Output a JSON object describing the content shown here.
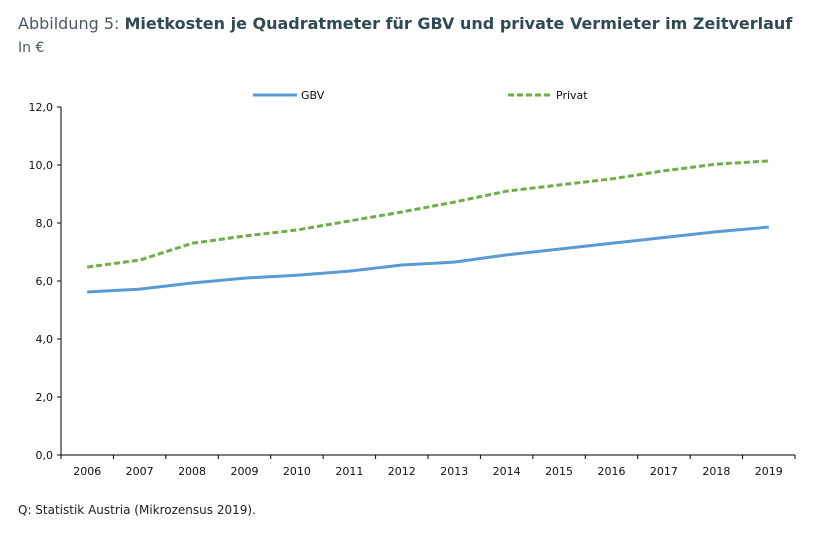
{
  "chart_data": {
    "type": "line",
    "title_prefix": "Abbildung 5:",
    "title": "Mietkosten je Quadratmeter für GBV und private Vermieter im Zeitverlauf",
    "subtitle": "In €",
    "source": "Q: Statistik Austria (Mikrozensus 2019).",
    "x": [
      "2006",
      "2007",
      "2008",
      "2009",
      "2010",
      "2011",
      "2012",
      "2013",
      "2014",
      "2015",
      "2016",
      "2017",
      "2018",
      "2019"
    ],
    "ylim": [
      0,
      12
    ],
    "yticks": [
      "0,0",
      "2,0",
      "4,0",
      "6,0",
      "8,0",
      "10,0",
      "12,0"
    ],
    "legend_position": "top",
    "series": [
      {
        "name": "GBV",
        "color": "#5b9bd5",
        "style": "solid",
        "values": [
          5.62,
          5.72,
          5.93,
          6.1,
          6.2,
          6.34,
          6.55,
          6.65,
          6.9,
          7.1,
          7.3,
          7.5,
          7.7,
          7.86
        ]
      },
      {
        "name": "Privat",
        "color": "#70ad47",
        "style": "dashed",
        "values": [
          6.48,
          6.72,
          7.3,
          7.55,
          7.76,
          8.07,
          8.38,
          8.72,
          9.1,
          9.31,
          9.52,
          9.8,
          10.03,
          10.14
        ]
      }
    ]
  }
}
